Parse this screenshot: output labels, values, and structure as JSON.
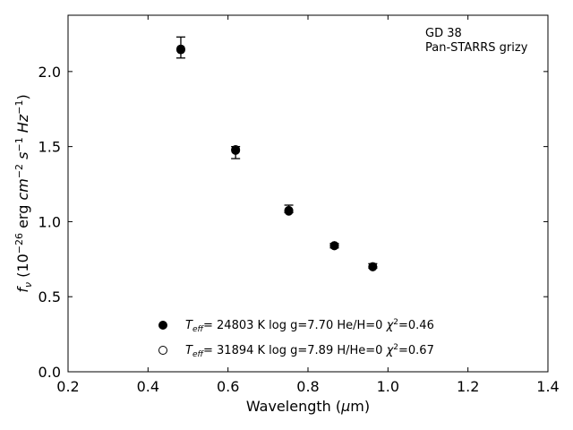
{
  "chart_data": {
    "type": "scatter",
    "annotation": [
      "GD 38",
      "Pan-STARRS grizy"
    ],
    "xlabel": "Wavelength (μm)",
    "ylabel": "fν (10⁻²⁶ erg cm⁻² s⁻¹ Hz⁻¹)",
    "xlim": [
      0.2,
      1.4
    ],
    "ylim": [
      0.0,
      2.375
    ],
    "xticks": [
      0.2,
      0.4,
      0.6,
      0.8,
      1.0,
      1.2,
      1.4
    ],
    "xtick_labels": [
      "0.2",
      "0.4",
      "0.6",
      "0.8",
      "1.0",
      "1.2",
      "1.4"
    ],
    "yticks": [
      0.0,
      0.5,
      1.0,
      1.5,
      2.0
    ],
    "ytick_labels": [
      "0.0",
      "0.5",
      "1.0",
      "1.5",
      "2.0"
    ],
    "grid": false,
    "legend_position": "bottom-left",
    "observed": {
      "x": [
        0.482,
        0.619,
        0.752,
        0.866,
        0.962
      ],
      "y": [
        2.16,
        1.48,
        1.08,
        0.84,
        0.705
      ],
      "err_low": [
        2.09,
        1.42,
        1.06,
        0.825,
        0.69
      ],
      "err_high": [
        2.23,
        1.5,
        1.11,
        0.855,
        0.72
      ]
    },
    "series": [
      {
        "marker": "filled",
        "label": "T_eff= 24803 K  log g=7.70  He/H=0  χ²=0.46",
        "x": [
          0.482,
          0.619,
          0.752,
          0.866,
          0.962
        ],
        "y": [
          2.145,
          1.475,
          1.07,
          0.84,
          0.7
        ]
      },
      {
        "marker": "open",
        "label": "T_eff= 31894 K  log g=7.89  H/He=0  χ²=0.67",
        "x": [
          0.482,
          0.619,
          0.752,
          0.866,
          0.962
        ],
        "y": [
          2.15,
          1.48,
          1.075,
          0.84,
          0.7
        ]
      }
    ]
  }
}
